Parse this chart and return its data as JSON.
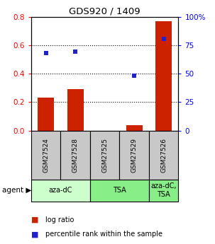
{
  "title": "GDS920 / 1409",
  "samples": [
    "GSM27524",
    "GSM27528",
    "GSM27525",
    "GSM27529",
    "GSM27526"
  ],
  "log_ratio": [
    0.23,
    0.29,
    0.0,
    0.04,
    0.77
  ],
  "percentile_rank": [
    0.547,
    0.555,
    null,
    0.387,
    0.647
  ],
  "ylim_left": [
    0,
    0.8
  ],
  "ylim_right": [
    0,
    100
  ],
  "yticks_left": [
    0,
    0.2,
    0.4,
    0.6,
    0.8
  ],
  "yticks_right": [
    0,
    25,
    50,
    75,
    100
  ],
  "bar_color": "#cc2200",
  "point_color": "#2222cc",
  "sample_box_color": "#c8c8c8",
  "background_color": "#ffffff",
  "bar_width": 0.55,
  "agent_groups": [
    {
      "start": 0,
      "end": 1,
      "label": "aza-dC",
      "color": "#ccffcc"
    },
    {
      "start": 2,
      "end": 3,
      "label": "TSA",
      "color": "#88ee88"
    },
    {
      "start": 4,
      "end": 4,
      "label": "aza-dC,\nTSA",
      "color": "#88ee88"
    }
  ],
  "legend_items": [
    {
      "color": "#cc2200",
      "label": "log ratio"
    },
    {
      "color": "#2222cc",
      "label": "percentile rank within the sample"
    }
  ]
}
